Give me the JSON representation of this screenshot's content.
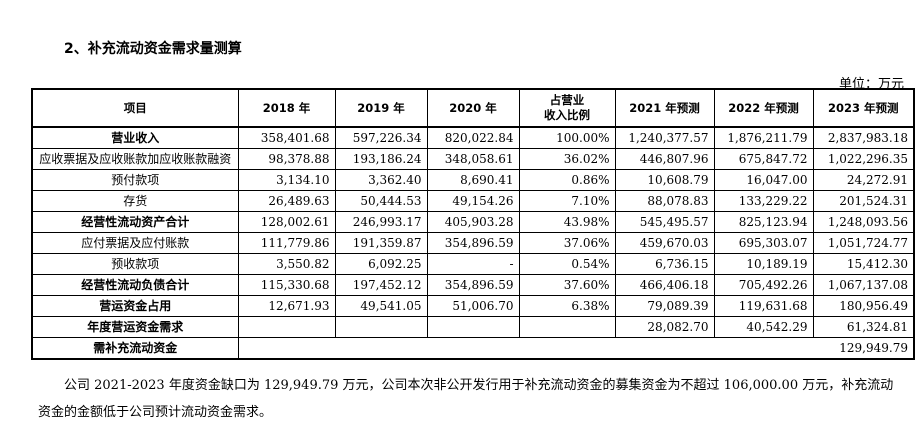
{
  "heading": "2、补充流动资金需求量测算",
  "unit": "单位：万元",
  "table": {
    "headers": [
      "项目",
      "2018 年",
      "2019 年",
      "2020 年",
      "占营业\n收入比例",
      "2021 年预测",
      "2022 年预测",
      "2023 年预测"
    ],
    "rows": [
      {
        "label": "营业收入",
        "cells": [
          "358,401.68",
          "597,226.34",
          "820,022.84",
          "100.00%",
          "1,240,377.57",
          "1,876,211.79",
          "2,837,983.18"
        ]
      },
      {
        "label": "应收票据及应收账款加应收账款融资",
        "cells": [
          "98,378.88",
          "193,186.24",
          "348,058.61",
          "36.02%",
          "446,807.96",
          "675,847.72",
          "1,022,296.35"
        ]
      },
      {
        "label": "预付款项",
        "cells": [
          "3,134.10",
          "3,362.40",
          "8,690.41",
          "0.86%",
          "10,608.79",
          "16,047.00",
          "24,272.91"
        ]
      },
      {
        "label": "存货",
        "cells": [
          "26,489.63",
          "50,444.53",
          "49,154.26",
          "7.10%",
          "88,078.83",
          "133,229.22",
          "201,524.31"
        ]
      },
      {
        "label": "经营性流动资产合计",
        "cells": [
          "128,002.61",
          "246,993.17",
          "405,903.28",
          "43.98%",
          "545,495.57",
          "825,123.94",
          "1,248,093.56"
        ]
      },
      {
        "label": "应付票据及应付账款",
        "cells": [
          "111,779.86",
          "191,359.87",
          "354,896.59",
          "37.06%",
          "459,670.03",
          "695,303.07",
          "1,051,724.77"
        ]
      },
      {
        "label": "预收款项",
        "cells": [
          "3,550.82",
          "6,092.25",
          "-",
          "0.54%",
          "6,736.15",
          "10,189.19",
          "15,412.30"
        ]
      },
      {
        "label": "经营性流动负债合计",
        "cells": [
          "115,330.68",
          "197,452.12",
          "354,896.59",
          "37.60%",
          "466,406.18",
          "705,492.26",
          "1,067,137.08"
        ]
      },
      {
        "label": "营运资金占用",
        "cells": [
          "12,671.93",
          "49,541.05",
          "51,006.70",
          "6.38%",
          "79,089.39",
          "119,631.68",
          "180,956.49"
        ]
      },
      {
        "label": "年度营运资金需求",
        "cells": [
          "",
          "",
          "",
          "",
          "28,082.70",
          "40,542.29",
          "61,324.81"
        ]
      }
    ],
    "final_row": {
      "label": "需补充流动资金",
      "value": "129,949.79"
    }
  },
  "paragraph": "公司 2021-2023 年度资金缺口为 129,949.79 万元，公司本次非公开发行用于补充流动资金的募集资金为不超过 106,000.00 万元，补充流动资金的金额低于公司预计流动资金需求。"
}
